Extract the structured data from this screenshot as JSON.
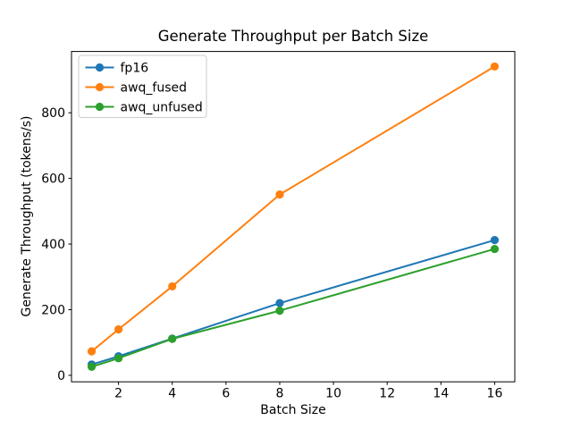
{
  "chart_data": {
    "type": "line",
    "title": "Generate Throughput per Batch Size",
    "xlabel": "Batch Size",
    "ylabel": "Generate Throughput (tokens/s)",
    "x": [
      1,
      2,
      4,
      8,
      16
    ],
    "series": [
      {
        "name": "fp16",
        "color": "#1f77b4",
        "values": [
          33,
          58,
          112,
          220,
          412
        ]
      },
      {
        "name": "awq_fused",
        "color": "#ff7f0e",
        "values": [
          73,
          140,
          271,
          551,
          941
        ]
      },
      {
        "name": "awq_unfused",
        "color": "#2ca02c",
        "values": [
          26,
          52,
          111,
          197,
          385
        ]
      }
    ],
    "x_ticks": [
      2,
      4,
      6,
      8,
      10,
      12,
      14,
      16
    ],
    "y_ticks": [
      0,
      200,
      400,
      600,
      800
    ],
    "xlim": [
      0.25,
      16.75
    ],
    "ylim": [
      -19.8,
      986.8
    ],
    "grid": false,
    "marker": "o",
    "legend_position": "upper-left",
    "line_color_axis": "#000000",
    "legend_border_color": "#cccccc"
  }
}
